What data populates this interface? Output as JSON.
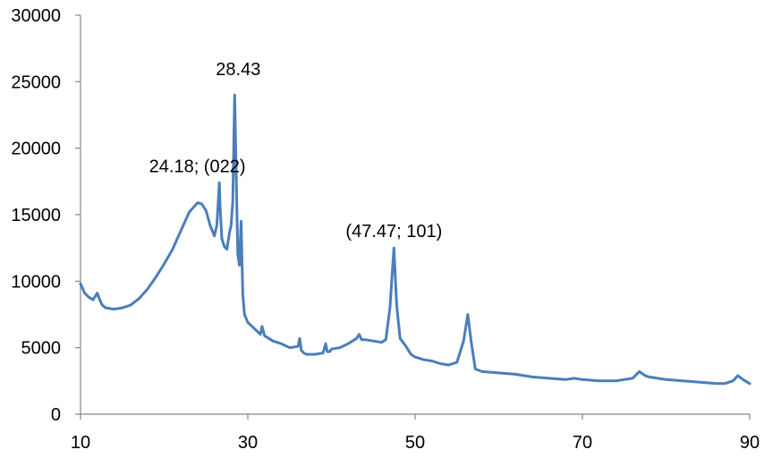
{
  "chart_data": {
    "type": "line",
    "title": "",
    "xlabel": "",
    "ylabel": "",
    "xlim": [
      10,
      90
    ],
    "ylim": [
      0,
      30000
    ],
    "x_ticks": [
      10,
      30,
      50,
      70,
      90
    ],
    "x_tick_labels": [
      "10",
      "30",
      "50",
      "70",
      "90"
    ],
    "y_ticks": [
      0,
      5000,
      10000,
      15000,
      20000,
      25000,
      30000
    ],
    "y_tick_labels": [
      "0",
      "5000",
      "10000",
      "15000",
      "20000",
      "25000",
      "30000"
    ],
    "grid": false,
    "legend": "none",
    "color": "#4a7ebb",
    "series": [
      {
        "x": [
          10,
          10.5,
          11,
          11.5,
          12,
          12.3,
          12.6,
          13,
          14,
          15,
          16,
          17,
          18,
          19,
          20,
          21,
          22,
          23,
          24,
          24.5,
          25,
          25.5,
          26,
          26.3,
          26.6,
          26.7,
          26.9,
          27.2,
          27.5,
          27.8,
          28.0,
          28.2,
          28.43,
          28.6,
          28.8,
          29.0,
          29.2,
          29.4,
          29.6,
          30,
          31,
          31.5,
          31.7,
          32,
          33,
          34,
          35,
          36,
          36.2,
          36.4,
          36.7,
          37,
          38,
          39,
          39.3,
          39.5,
          39.8,
          40,
          41,
          42,
          43,
          43.3,
          43.6,
          44,
          45,
          46,
          46.5,
          47.0,
          47.47,
          47.8,
          48.2,
          48.8,
          49.5,
          50,
          51,
          52,
          53,
          54,
          55,
          55.8,
          56.3,
          56.7,
          57.2,
          58,
          60,
          62,
          64,
          66,
          68,
          69,
          70,
          72,
          74,
          75,
          76,
          76.8,
          77.5,
          78,
          79,
          80,
          82,
          84,
          86,
          87,
          88,
          88.6,
          89.2,
          90
        ],
        "y": [
          9800,
          9100,
          8800,
          8600,
          9100,
          8600,
          8200,
          8000,
          7900,
          8000,
          8200,
          8700,
          9400,
          10300,
          11300,
          12400,
          13800,
          15200,
          15900,
          15800,
          15300,
          14200,
          13400,
          14200,
          17400,
          15500,
          13200,
          12600,
          12400,
          13600,
          14200,
          16000,
          24000,
          18500,
          12000,
          11200,
          14500,
          9000,
          7500,
          6900,
          6300,
          6000,
          6600,
          5900,
          5500,
          5300,
          5000,
          5100,
          5700,
          4800,
          4600,
          4500,
          4500,
          4600,
          5300,
          4700,
          4700,
          4900,
          5000,
          5300,
          5700,
          6000,
          5600,
          5600,
          5500,
          5400,
          5600,
          8000,
          12500,
          8200,
          5700,
          5200,
          4500,
          4300,
          4100,
          4000,
          3800,
          3700,
          3900,
          5500,
          7500,
          5500,
          3400,
          3200,
          3100,
          3000,
          2800,
          2700,
          2600,
          2700,
          2600,
          2500,
          2500,
          2600,
          2700,
          3200,
          2900,
          2800,
          2700,
          2600,
          2500,
          2400,
          2300,
          2300,
          2500,
          2900,
          2600,
          2300
        ]
      }
    ],
    "annotations": [
      {
        "text": "28.43",
        "x": 28.43,
        "y": 24000
      },
      {
        "text": "24.18; (022)",
        "x": 24.18,
        "y": 17400
      },
      {
        "text": "(47.47; 101)",
        "x": 47.47,
        "y": 12500
      }
    ]
  }
}
